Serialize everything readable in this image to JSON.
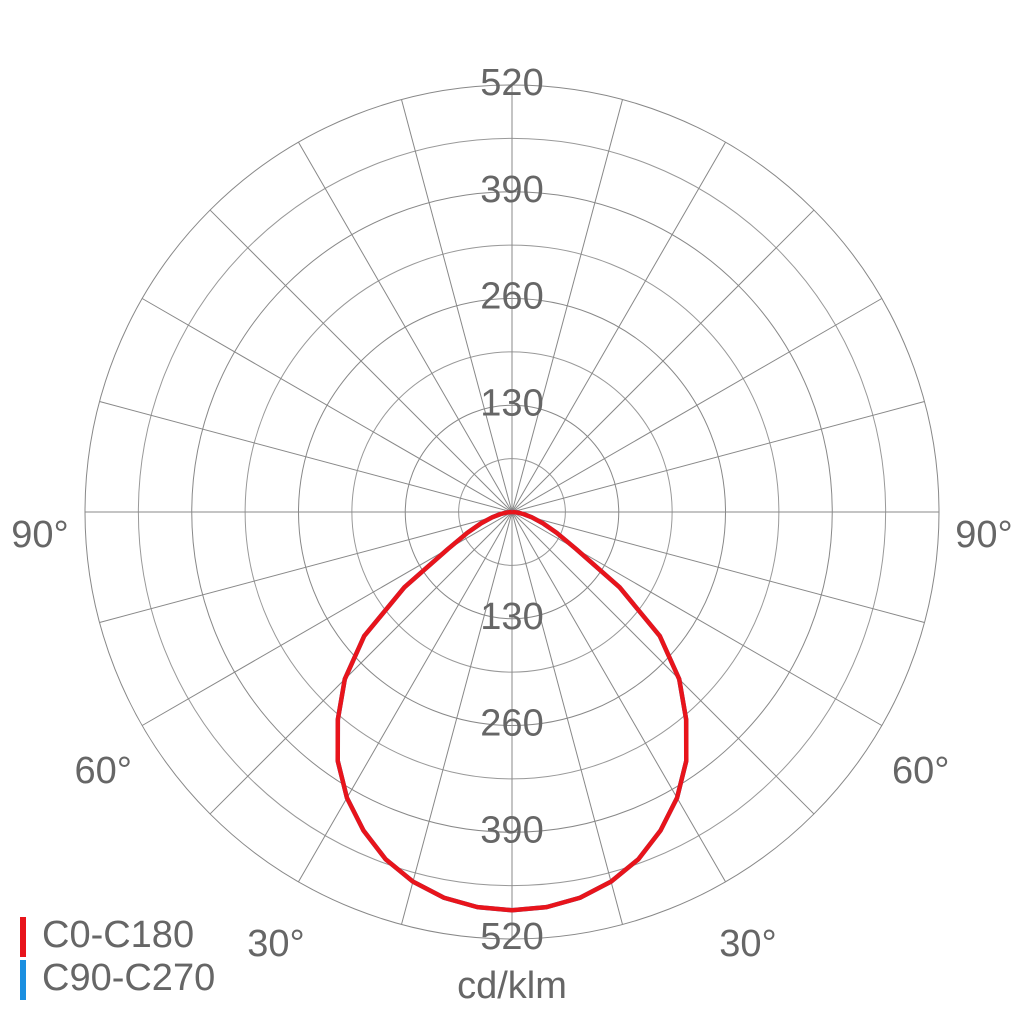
{
  "chart_data": {
    "type": "polar",
    "unit_label": "cd/klm",
    "x": [
      -90,
      -85,
      -80,
      -75,
      -70,
      -65,
      -60,
      -55,
      -50,
      -45,
      -40,
      -35,
      -30,
      -25,
      -20,
      -15,
      -10,
      -5,
      0,
      5,
      10,
      15,
      20,
      25,
      30,
      35,
      40,
      45,
      50,
      55,
      60,
      65,
      70,
      75,
      80,
      85,
      90
    ],
    "series": [
      {
        "name": "C90-C270",
        "color": "#1a8fe0",
        "values": [
          0,
          6,
          14,
          25,
          40,
          60,
          90,
          160,
          235,
          288,
          330,
          370,
          402,
          428,
          450,
          466,
          477,
          483,
          485,
          483,
          477,
          466,
          450,
          428,
          402,
          370,
          330,
          288,
          235,
          160,
          90,
          60,
          40,
          25,
          14,
          6,
          0
        ]
      },
      {
        "name": "C0-C180",
        "color": "#e8141b",
        "values": [
          0,
          6,
          14,
          25,
          40,
          60,
          90,
          160,
          235,
          288,
          330,
          370,
          402,
          428,
          450,
          466,
          477,
          483,
          485,
          483,
          477,
          466,
          450,
          428,
          402,
          370,
          330,
          288,
          235,
          160,
          90,
          60,
          40,
          25,
          14,
          6,
          0
        ]
      }
    ],
    "ylim": [
      0,
      520
    ],
    "yticks": [
      130,
      260,
      390,
      520
    ],
    "minor_grid": true,
    "angular_grid_step": 15,
    "xticks": [
      {
        "value": -90,
        "label": "90°"
      },
      {
        "value": -60,
        "label": "60°"
      },
      {
        "value": -30,
        "label": "30°"
      },
      {
        "value": 30,
        "label": "30°"
      },
      {
        "value": 60,
        "label": "60°"
      },
      {
        "value": 90,
        "label": "90°"
      }
    ],
    "legend": "bottom-left"
  }
}
